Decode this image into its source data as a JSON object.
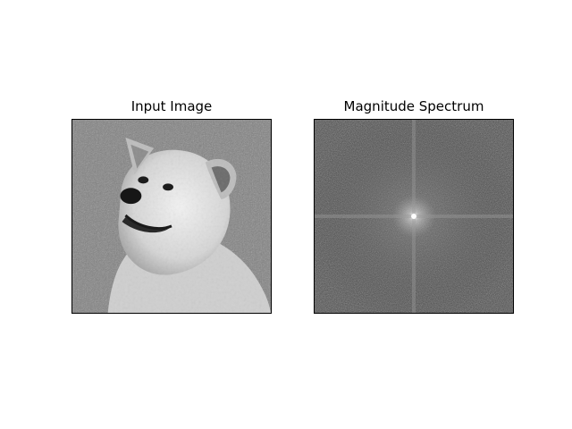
{
  "figure": {
    "panels": [
      {
        "title": "Input Image",
        "kind": "grayscale-photo-dog"
      },
      {
        "title": "Magnitude Spectrum",
        "kind": "fft-magnitude-spectrum"
      }
    ],
    "colors": {
      "background": "#ffffff",
      "frame": "#000000",
      "colormap": "gray"
    }
  }
}
